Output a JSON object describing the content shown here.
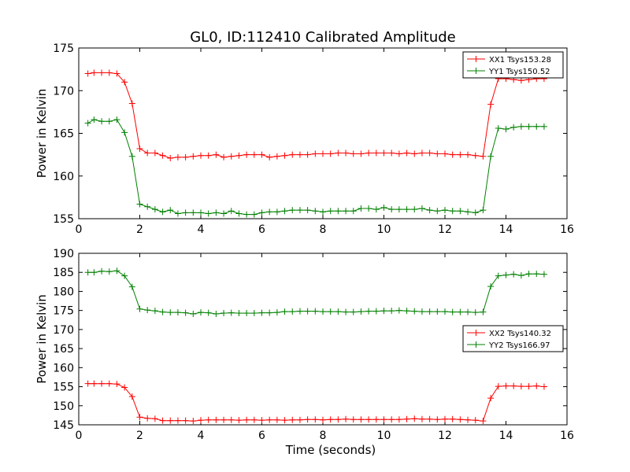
{
  "title": "GL0, ID:112410 Calibrated Amplitude",
  "chart_data": [
    {
      "type": "line",
      "xlabel": "",
      "ylabel": "Power in Kelvin",
      "xlim": [
        0,
        16
      ],
      "ylim": [
        155,
        175
      ],
      "xticks": [
        "0",
        "2",
        "4",
        "6",
        "8",
        "10",
        "12",
        "14",
        "16"
      ],
      "yticks": [
        "155",
        "160",
        "165",
        "170",
        "175"
      ],
      "legend_position": "top-right",
      "grid": false,
      "x": [
        0.3,
        0.5,
        0.75,
        1.0,
        1.25,
        1.5,
        1.75,
        2.0,
        2.25,
        2.5,
        2.75,
        3.0,
        3.25,
        3.5,
        3.75,
        4.0,
        4.25,
        4.5,
        4.75,
        5.0,
        5.25,
        5.5,
        5.75,
        6.0,
        6.25,
        6.5,
        6.75,
        7.0,
        7.25,
        7.5,
        7.75,
        8.0,
        8.25,
        8.5,
        8.75,
        9.0,
        9.25,
        9.5,
        9.75,
        10.0,
        10.25,
        10.5,
        10.75,
        11.0,
        11.25,
        11.5,
        11.75,
        12.0,
        12.25,
        12.5,
        12.75,
        13.0,
        13.25,
        13.5,
        13.75,
        14.0,
        14.25,
        14.5,
        14.75,
        15.0,
        15.25
      ],
      "series": [
        {
          "name": "XX1 Tsys153.28",
          "color": "#ff0000",
          "values": [
            172.0,
            172.1,
            172.1,
            172.1,
            172.0,
            171.0,
            168.5,
            163.2,
            162.7,
            162.7,
            162.4,
            162.1,
            162.2,
            162.2,
            162.3,
            162.4,
            162.4,
            162.5,
            162.2,
            162.3,
            162.4,
            162.5,
            162.5,
            162.5,
            162.2,
            162.3,
            162.4,
            162.5,
            162.5,
            162.5,
            162.6,
            162.6,
            162.6,
            162.7,
            162.7,
            162.6,
            162.6,
            162.7,
            162.7,
            162.7,
            162.7,
            162.6,
            162.7,
            162.6,
            162.7,
            162.7,
            162.6,
            162.6,
            162.5,
            162.5,
            162.5,
            162.4,
            162.3,
            168.4,
            171.4,
            171.4,
            171.3,
            171.2,
            171.3,
            171.4,
            171.4
          ]
        },
        {
          "name": "YY1 Tsys150.52",
          "color": "#008000",
          "values": [
            166.2,
            166.6,
            166.4,
            166.4,
            166.6,
            165.1,
            162.3,
            156.7,
            156.4,
            156.1,
            155.8,
            156.0,
            155.6,
            155.7,
            155.7,
            155.7,
            155.6,
            155.7,
            155.6,
            155.9,
            155.6,
            155.5,
            155.5,
            155.7,
            155.8,
            155.8,
            155.9,
            156.0,
            156.0,
            156.0,
            155.9,
            155.8,
            155.9,
            155.9,
            155.9,
            155.9,
            156.2,
            156.2,
            156.1,
            156.3,
            156.1,
            156.1,
            156.1,
            156.1,
            156.2,
            156.0,
            155.9,
            156.0,
            155.9,
            155.9,
            155.8,
            155.7,
            156.0,
            162.3,
            165.6,
            165.5,
            165.7,
            165.8,
            165.8,
            165.8,
            165.8
          ]
        }
      ]
    },
    {
      "type": "line",
      "xlabel": "Time (seconds)",
      "ylabel": "Power in Kelvin",
      "xlim": [
        0,
        16
      ],
      "ylim": [
        145,
        190
      ],
      "xticks": [
        "0",
        "2",
        "4",
        "6",
        "8",
        "10",
        "12",
        "14",
        "16"
      ],
      "yticks": [
        "145",
        "150",
        "155",
        "160",
        "165",
        "170",
        "175",
        "180",
        "185",
        "190"
      ],
      "legend_position": "center-right",
      "grid": false,
      "x": [
        0.3,
        0.5,
        0.75,
        1.0,
        1.25,
        1.5,
        1.75,
        2.0,
        2.25,
        2.5,
        2.75,
        3.0,
        3.25,
        3.5,
        3.75,
        4.0,
        4.25,
        4.5,
        4.75,
        5.0,
        5.25,
        5.5,
        5.75,
        6.0,
        6.25,
        6.5,
        6.75,
        7.0,
        7.25,
        7.5,
        7.75,
        8.0,
        8.25,
        8.5,
        8.75,
        9.0,
        9.25,
        9.5,
        9.75,
        10.0,
        10.25,
        10.5,
        10.75,
        11.0,
        11.25,
        11.5,
        11.75,
        12.0,
        12.25,
        12.5,
        12.75,
        13.0,
        13.25,
        13.5,
        13.75,
        14.0,
        14.25,
        14.5,
        14.75,
        15.0,
        15.25
      ],
      "series": [
        {
          "name": "XX2 Tsys140.32",
          "color": "#ff0000",
          "values": [
            155.8,
            155.8,
            155.8,
            155.8,
            155.7,
            154.8,
            152.4,
            147.0,
            146.7,
            146.6,
            146.1,
            146.1,
            146.1,
            146.1,
            146.0,
            146.2,
            146.3,
            146.3,
            146.3,
            146.3,
            146.2,
            146.3,
            146.3,
            146.2,
            146.3,
            146.3,
            146.2,
            146.3,
            146.3,
            146.4,
            146.4,
            146.3,
            146.4,
            146.4,
            146.5,
            146.4,
            146.4,
            146.4,
            146.4,
            146.4,
            146.4,
            146.4,
            146.5,
            146.6,
            146.5,
            146.5,
            146.4,
            146.5,
            146.5,
            146.4,
            146.3,
            146.2,
            146.0,
            152.0,
            155.1,
            155.2,
            155.2,
            155.1,
            155.1,
            155.2,
            155.0
          ]
        },
        {
          "name": "YY2 Tsys166.97",
          "color": "#008000",
          "values": [
            185.0,
            185.0,
            185.3,
            185.2,
            185.4,
            184.1,
            181.2,
            175.4,
            175.1,
            174.9,
            174.6,
            174.5,
            174.5,
            174.4,
            174.1,
            174.5,
            174.4,
            174.1,
            174.3,
            174.4,
            174.3,
            174.3,
            174.3,
            174.4,
            174.4,
            174.5,
            174.7,
            174.7,
            174.8,
            174.8,
            174.8,
            174.7,
            174.7,
            174.7,
            174.6,
            174.6,
            174.7,
            174.8,
            174.8,
            174.9,
            174.9,
            175.0,
            174.9,
            174.8,
            174.7,
            174.7,
            174.7,
            174.7,
            174.6,
            174.6,
            174.6,
            174.5,
            174.6,
            181.3,
            184.1,
            184.3,
            184.5,
            184.2,
            184.6,
            184.6,
            184.5
          ]
        }
      ]
    }
  ]
}
